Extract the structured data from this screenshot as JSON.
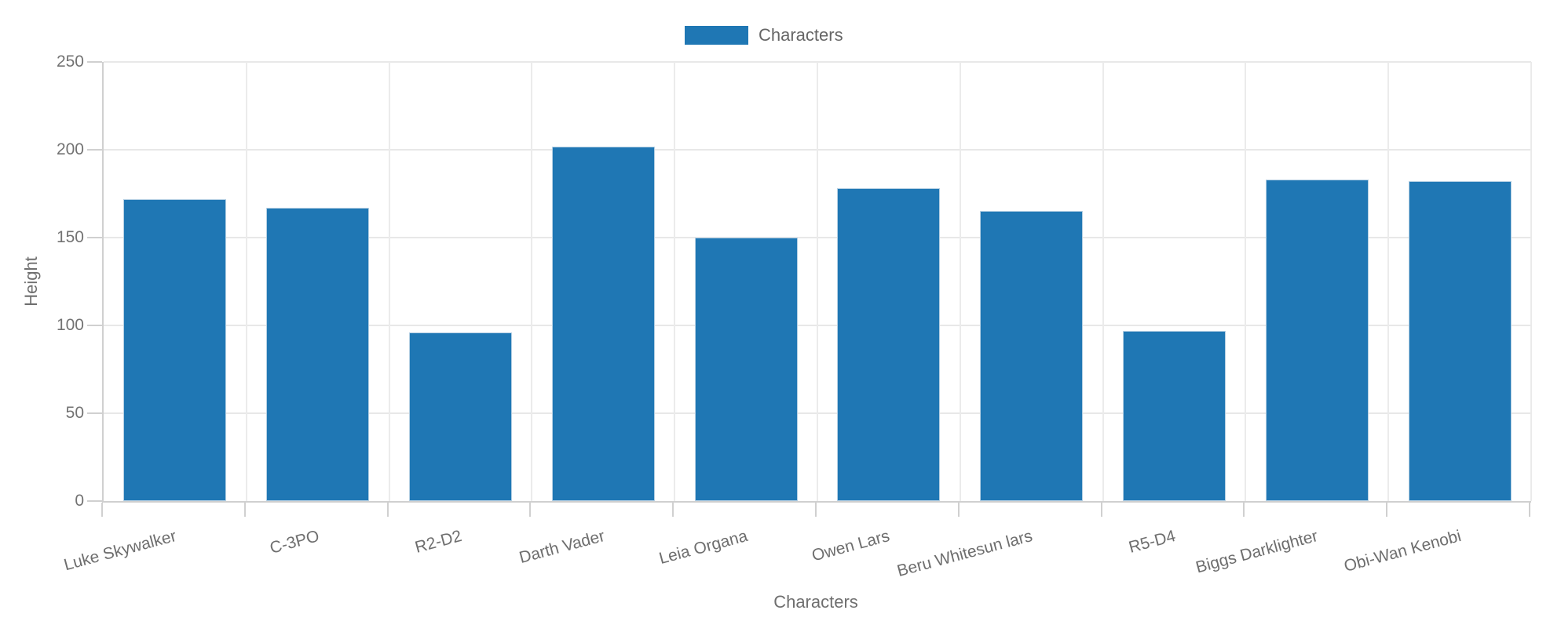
{
  "legend": {
    "label": "Characters",
    "swatch_color": "#1f77b4"
  },
  "chart_data": {
    "type": "bar",
    "title": "",
    "categories": [
      "Luke Skywalker",
      "C-3PO",
      "R2-D2",
      "Darth Vader",
      "Leia Organa",
      "Owen Lars",
      "Beru Whitesun lars",
      "R5-D4",
      "Biggs Darklighter",
      "Obi-Wan Kenobi"
    ],
    "series": [
      {
        "name": "Characters",
        "values": [
          172,
          167,
          96,
          202,
          150,
          178,
          165,
          97,
          183,
          182
        ]
      }
    ],
    "xlabel": "Characters",
    "ylabel": "Height",
    "ylim": [
      0,
      250
    ],
    "yticks": [
      0,
      50,
      100,
      150,
      200,
      250
    ],
    "grid": true,
    "legend_position": "top-center",
    "bar_color": "#1f77b4",
    "bar_border_color": "#b4cfe3"
  },
  "colors": {
    "background": "#ffffff",
    "gridline": "#e8e8e8",
    "axis_line": "#d0d0d0",
    "tick_label": "#737373",
    "axis_title": "#6f6f6f",
    "legend_text": "#666666"
  }
}
